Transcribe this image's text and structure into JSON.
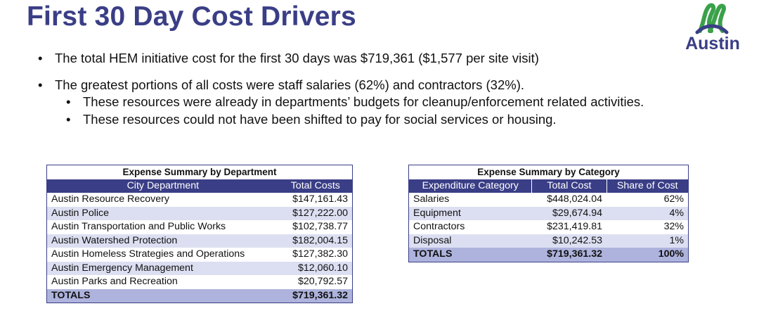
{
  "title": "First 30 Day Cost Drivers",
  "logo": {
    "text": "Austin",
    "icon": "austin-logo-icon"
  },
  "bullets": {
    "b1": "The total HEM initiative cost for the first 30 days was $719,361 ($1,577 per site visit)",
    "b2": "The greatest portions of all costs were staff salaries (62%) and contractors (32%).",
    "b3": "These resources were already in departments’ budgets for cleanup/enforcement related activities.",
    "b4": "These resources could not have been shifted to pay for social services or housing."
  },
  "dept_table": {
    "caption": "Expense Summary by Department",
    "headers": [
      "City Department",
      "Total Costs"
    ],
    "rows": [
      [
        "Austin Resource Recovery",
        "$147,161.43"
      ],
      [
        "Austin Police",
        "$127,222.00"
      ],
      [
        "Austin Transportation and Public Works",
        "$102,738.77"
      ],
      [
        "Austin Watershed Protection",
        "$182,004.15"
      ],
      [
        "Austin Homeless Strategies and Operations",
        "$127,382.30"
      ],
      [
        "Austin Emergency Management",
        "$12,060.10"
      ],
      [
        "Austin Parks and Recreation",
        "$20,792.57"
      ]
    ],
    "totals": [
      "TOTALS",
      "$719,361.32"
    ]
  },
  "cat_table": {
    "caption": "Expense Summary by Category",
    "headers": [
      "Expenditure Category",
      "Total Cost",
      "Share of Cost"
    ],
    "rows": [
      [
        "Salaries",
        "$448,024.04",
        "62%"
      ],
      [
        "Equipment",
        "$29,674.94",
        "4%"
      ],
      [
        "Contractors",
        "$231,419.81",
        "32%"
      ],
      [
        "Disposal",
        "$10,242.53",
        "1%"
      ]
    ],
    "totals": [
      "TOTALS",
      "$719,361.32",
      "100%"
    ]
  }
}
